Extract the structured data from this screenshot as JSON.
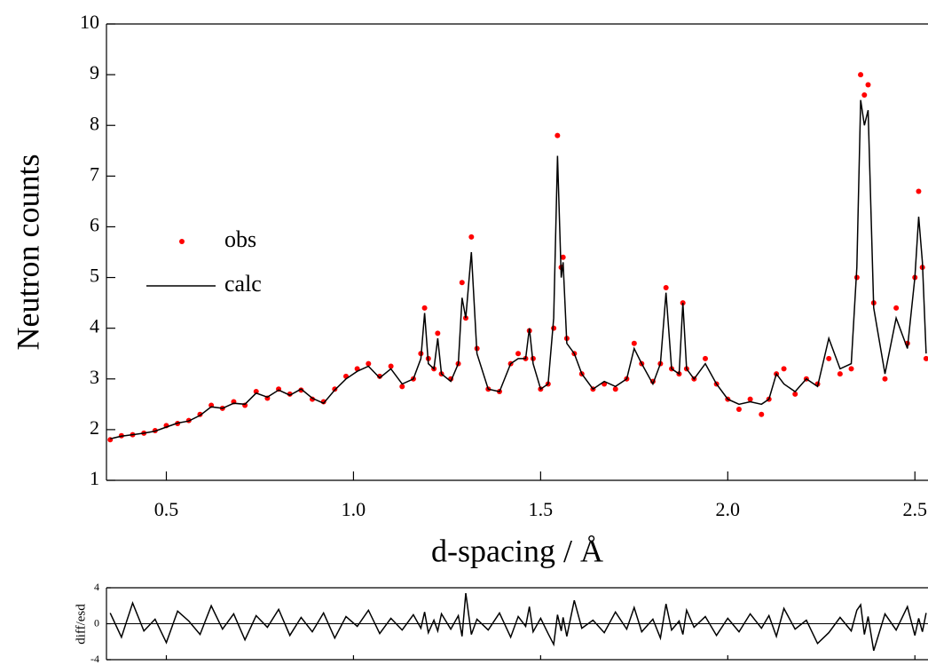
{
  "chart_data": [
    {
      "type": "line",
      "xlabel": "d-spacing / Å",
      "ylabel": "Neutron counts",
      "x": [
        0.35,
        0.38,
        0.41,
        0.44,
        0.47,
        0.5,
        0.53,
        0.56,
        0.59,
        0.62,
        0.65,
        0.68,
        0.71,
        0.74,
        0.77,
        0.8,
        0.83,
        0.86,
        0.89,
        0.92,
        0.95,
        0.98,
        1.01,
        1.04,
        1.07,
        1.1,
        1.13,
        1.16,
        1.18,
        1.19,
        1.2,
        1.215,
        1.225,
        1.235,
        1.26,
        1.28,
        1.29,
        1.3,
        1.315,
        1.33,
        1.36,
        1.39,
        1.42,
        1.44,
        1.46,
        1.47,
        1.48,
        1.5,
        1.52,
        1.535,
        1.545,
        1.555,
        1.56,
        1.57,
        1.59,
        1.61,
        1.64,
        1.67,
        1.7,
        1.73,
        1.75,
        1.77,
        1.8,
        1.82,
        1.835,
        1.85,
        1.87,
        1.88,
        1.89,
        1.91,
        1.94,
        1.97,
        2.0,
        2.03,
        2.06,
        2.09,
        2.11,
        2.13,
        2.15,
        2.18,
        2.21,
        2.24,
        2.27,
        2.3,
        2.33,
        2.345,
        2.355,
        2.365,
        2.375,
        2.39,
        2.42,
        2.45,
        2.48,
        2.5,
        2.51,
        2.52,
        2.53
      ],
      "series": [
        {
          "name": "obs",
          "style": "markers",
          "color": "#ff0000",
          "values": [
            1.8,
            1.88,
            1.9,
            1.93,
            1.98,
            2.08,
            2.12,
            2.18,
            2.3,
            2.48,
            2.42,
            2.55,
            2.48,
            2.75,
            2.62,
            2.8,
            2.7,
            2.78,
            2.6,
            2.55,
            2.8,
            3.05,
            3.2,
            3.3,
            3.05,
            3.25,
            2.85,
            3.0,
            3.5,
            4.4,
            3.4,
            3.2,
            3.9,
            3.1,
            3.0,
            3.3,
            4.9,
            4.2,
            5.8,
            3.6,
            2.8,
            2.75,
            3.3,
            3.5,
            3.4,
            3.95,
            3.4,
            2.8,
            2.9,
            4.0,
            7.8,
            5.2,
            5.4,
            3.8,
            3.5,
            3.1,
            2.8,
            2.9,
            2.8,
            3.0,
            3.7,
            3.3,
            2.95,
            3.3,
            4.8,
            3.2,
            3.1,
            4.5,
            3.2,
            3.0,
            3.4,
            2.9,
            2.6,
            2.4,
            2.6,
            2.3,
            2.6,
            3.1,
            3.2,
            2.7,
            3.0,
            2.9,
            3.4,
            3.1,
            3.2,
            5.0,
            9.0,
            8.6,
            8.8,
            4.5,
            3.0,
            4.4,
            3.7,
            5.0,
            6.7,
            5.2,
            3.4
          ]
        },
        {
          "name": "calc",
          "style": "line",
          "color": "#000000",
          "values": [
            1.82,
            1.87,
            1.9,
            1.93,
            1.97,
            2.05,
            2.13,
            2.17,
            2.28,
            2.45,
            2.42,
            2.52,
            2.5,
            2.72,
            2.64,
            2.78,
            2.68,
            2.8,
            2.62,
            2.52,
            2.78,
            3.0,
            3.15,
            3.25,
            3.02,
            3.2,
            2.9,
            3.0,
            3.4,
            4.3,
            3.3,
            3.2,
            3.8,
            3.1,
            2.95,
            3.3,
            4.6,
            4.2,
            5.5,
            3.5,
            2.8,
            2.75,
            3.3,
            3.4,
            3.4,
            4.0,
            3.3,
            2.8,
            2.9,
            4.2,
            7.4,
            5.0,
            5.3,
            3.7,
            3.5,
            3.1,
            2.8,
            2.95,
            2.85,
            3.0,
            3.6,
            3.3,
            2.9,
            3.3,
            4.7,
            3.2,
            3.1,
            4.5,
            3.2,
            3.0,
            3.3,
            2.9,
            2.6,
            2.5,
            2.55,
            2.5,
            2.6,
            3.1,
            2.9,
            2.75,
            3.0,
            2.85,
            3.8,
            3.2,
            3.3,
            5.2,
            8.5,
            8.0,
            8.3,
            4.4,
            3.1,
            4.2,
            3.6,
            5.0,
            6.2,
            5.3,
            3.5
          ]
        }
      ],
      "xlim": [
        0.34,
        2.535
      ],
      "ylim": [
        1,
        10
      ],
      "xticks": [
        0.5,
        {
          "value": 1,
          "label": "1.0"
        },
        1.5,
        {
          "value": 2,
          "label": "2.0"
        },
        2.5
      ],
      "yticks": [
        1,
        2,
        3,
        4,
        5,
        6,
        7,
        8,
        9,
        10
      ],
      "legend": "center left"
    },
    {
      "type": "line",
      "ylabel": "diff/esd",
      "x": [
        0.35,
        0.38,
        0.41,
        0.44,
        0.47,
        0.5,
        0.53,
        0.56,
        0.59,
        0.62,
        0.65,
        0.68,
        0.71,
        0.74,
        0.77,
        0.8,
        0.83,
        0.86,
        0.89,
        0.92,
        0.95,
        0.98,
        1.01,
        1.04,
        1.07,
        1.1,
        1.13,
        1.16,
        1.18,
        1.19,
        1.2,
        1.215,
        1.225,
        1.235,
        1.26,
        1.28,
        1.29,
        1.3,
        1.315,
        1.33,
        1.36,
        1.39,
        1.42,
        1.44,
        1.46,
        1.47,
        1.48,
        1.5,
        1.52,
        1.535,
        1.545,
        1.555,
        1.56,
        1.57,
        1.59,
        1.61,
        1.64,
        1.67,
        1.7,
        1.73,
        1.75,
        1.77,
        1.8,
        1.82,
        1.835,
        1.85,
        1.87,
        1.88,
        1.89,
        1.91,
        1.94,
        1.97,
        2.0,
        2.03,
        2.06,
        2.09,
        2.11,
        2.13,
        2.15,
        2.18,
        2.21,
        2.24,
        2.27,
        2.3,
        2.33,
        2.345,
        2.355,
        2.365,
        2.375,
        2.39,
        2.42,
        2.45,
        2.48,
        2.5,
        2.51,
        2.52,
        2.53
      ],
      "series": [
        {
          "color": "#000000",
          "values": [
            1.2,
            -1.5,
            2.3,
            -0.8,
            0.5,
            -2.1,
            1.4,
            0.3,
            -1.2,
            2.0,
            -0.6,
            1.1,
            -1.8,
            0.9,
            -0.4,
            1.6,
            -1.3,
            0.7,
            -0.9,
            1.2,
            -1.6,
            0.8,
            -0.3,
            1.5,
            -1.1,
            0.6,
            -0.7,
            1.0,
            -0.5,
            1.3,
            -1.0,
            0.4,
            -0.8,
            1.1,
            -0.6,
            0.9,
            -1.4,
            3.4,
            -1.2,
            0.5,
            -0.7,
            1.2,
            -1.5,
            0.8,
            -0.3,
            1.9,
            -0.9,
            0.6,
            -1.1,
            -2.3,
            1.0,
            -0.8,
            0.7,
            -1.4,
            2.6,
            -0.5,
            0.4,
            -1.0,
            1.3,
            -0.6,
            1.8,
            -0.9,
            0.5,
            -1.6,
            2.2,
            -0.7,
            0.3,
            -1.2,
            1.5,
            -0.4,
            0.8,
            -1.3,
            0.6,
            -0.9,
            1.1,
            -0.5,
            0.9,
            -1.4,
            1.7,
            -0.6,
            0.4,
            -2.2,
            -1.0,
            0.7,
            -0.8,
            1.5,
            2.1,
            -1.2,
            0.8,
            -3.0,
            1.1,
            -0.7,
            1.9,
            -1.3,
            0.6,
            -0.9,
            1.2
          ]
        }
      ],
      "xlim": [
        0.34,
        2.535
      ],
      "ylim": [
        -4,
        4
      ],
      "xticks": [
        0.5,
        1,
        1.5,
        2,
        2.5
      ],
      "yticks": [
        -4,
        0,
        4
      ]
    }
  ]
}
